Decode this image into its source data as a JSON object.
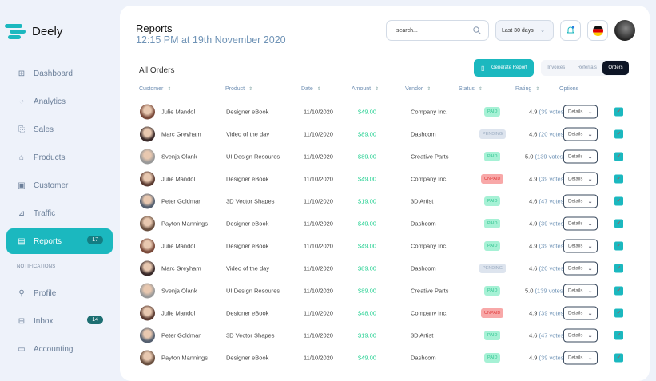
{
  "brand": "Deely",
  "colors": {
    "accent": "#1bb8bf",
    "paid": "#2fc490",
    "unpaid": "#e03a3a",
    "amount": "#1fcf8f"
  },
  "sidebar": {
    "items": [
      {
        "label": "Dashboard",
        "icon": "grid-icon"
      },
      {
        "label": "Analytics",
        "icon": "pie-chart-icon"
      },
      {
        "label": "Sales",
        "icon": "tag-icon"
      },
      {
        "label": "Products",
        "icon": "bag-icon"
      },
      {
        "label": "Customer",
        "icon": "briefcase-icon"
      },
      {
        "label": "Traffic",
        "icon": "chart-icon"
      },
      {
        "label": "Reports",
        "icon": "document-icon",
        "badge": "17",
        "active": true
      }
    ],
    "section": "NOTIFICATIONS",
    "items2": [
      {
        "label": "Profile",
        "icon": "user-icon"
      },
      {
        "label": "Inbox",
        "icon": "inbox-icon",
        "badge": "14"
      },
      {
        "label": "Accounting",
        "icon": "folder-icon"
      }
    ]
  },
  "header": {
    "title": "Reports",
    "subtitle": "12:15 PM at 19th November 2020",
    "search_placeholder": "search...",
    "range": "Last 30 days"
  },
  "orders": {
    "title": "All Orders",
    "generate": "Generate Report",
    "tabs": [
      "Invoices",
      "Referrals",
      "Orders"
    ],
    "columns": [
      "Customer",
      "Product",
      "Date",
      "Amount",
      "Vendor",
      "Status",
      "Rating",
      "Options"
    ],
    "details_label": "Details",
    "rows": [
      {
        "customer": "Julie Mandol",
        "product": "Designer eBook",
        "date": "11/10/2020",
        "amount": "$49.00",
        "vendor": "Company Inc.",
        "status": "PAID",
        "rating": "4.9",
        "votes": "(39 votes)"
      },
      {
        "customer": "Marc Greyham",
        "product": "Video of the day",
        "date": "11/10/2020",
        "amount": "$89.00",
        "vendor": "Dashcom",
        "status": "PENDING",
        "rating": "4.6",
        "votes": "(20 votes)"
      },
      {
        "customer": "Svenja Olank",
        "product": "UI Design Resoures",
        "date": "11/10/2020",
        "amount": "$89.00",
        "vendor": "Creative Parts",
        "status": "PAID",
        "rating": "5.0",
        "votes": "(139 votes)"
      },
      {
        "customer": "Julie Mandol",
        "product": "Designer eBook",
        "date": "11/10/2020",
        "amount": "$49.00",
        "vendor": "Company Inc.",
        "status": "UNPAID",
        "rating": "4.9",
        "votes": "(39 votes)"
      },
      {
        "customer": "Peter Goldman",
        "product": "3D Vector Shapes",
        "date": "11/10/2020",
        "amount": "$19.00",
        "vendor": "3D Artist",
        "status": "PAID",
        "rating": "4.6",
        "votes": "(47 votes)"
      },
      {
        "customer": "Payton Mannings",
        "product": "Designer eBook",
        "date": "11/10/2020",
        "amount": "$49.00",
        "vendor": "Dashcom",
        "status": "PAID",
        "rating": "4.9",
        "votes": "(39 votes)"
      },
      {
        "customer": "Julie Mandol",
        "product": "Designer eBook",
        "date": "11/10/2020",
        "amount": "$49.00",
        "vendor": "Company Inc.",
        "status": "PAID",
        "rating": "4.9",
        "votes": "(39 votes)"
      },
      {
        "customer": "Marc Greyham",
        "product": "Video of the day",
        "date": "11/10/2020",
        "amount": "$89.00",
        "vendor": "Dashcom",
        "status": "PENDING",
        "rating": "4.6",
        "votes": "(20 votes)"
      },
      {
        "customer": "Svenja Olank",
        "product": "UI Design Resoures",
        "date": "11/10/2020",
        "amount": "$89.00",
        "vendor": "Creative Parts",
        "status": "PAID",
        "rating": "5.0",
        "votes": "(139 votes)"
      },
      {
        "customer": "Julie Mandol",
        "product": "Designer eBook",
        "date": "11/10/2020",
        "amount": "$48.00",
        "vendor": "Company Inc.",
        "status": "UNPAID",
        "rating": "4.9",
        "votes": "(39 votes)"
      },
      {
        "customer": "Peter Goldman",
        "product": "3D Vector Shapes",
        "date": "11/10/2020",
        "amount": "$19.00",
        "vendor": "3D Artist",
        "status": "PAID",
        "rating": "4.6",
        "votes": "(47 votes)"
      },
      {
        "customer": "Payton Mannings",
        "product": "Designer eBook",
        "date": "11/10/2020",
        "amount": "$49.00",
        "vendor": "Dashcom",
        "status": "PAID",
        "rating": "4.9",
        "votes": "(39 votes)"
      }
    ]
  }
}
